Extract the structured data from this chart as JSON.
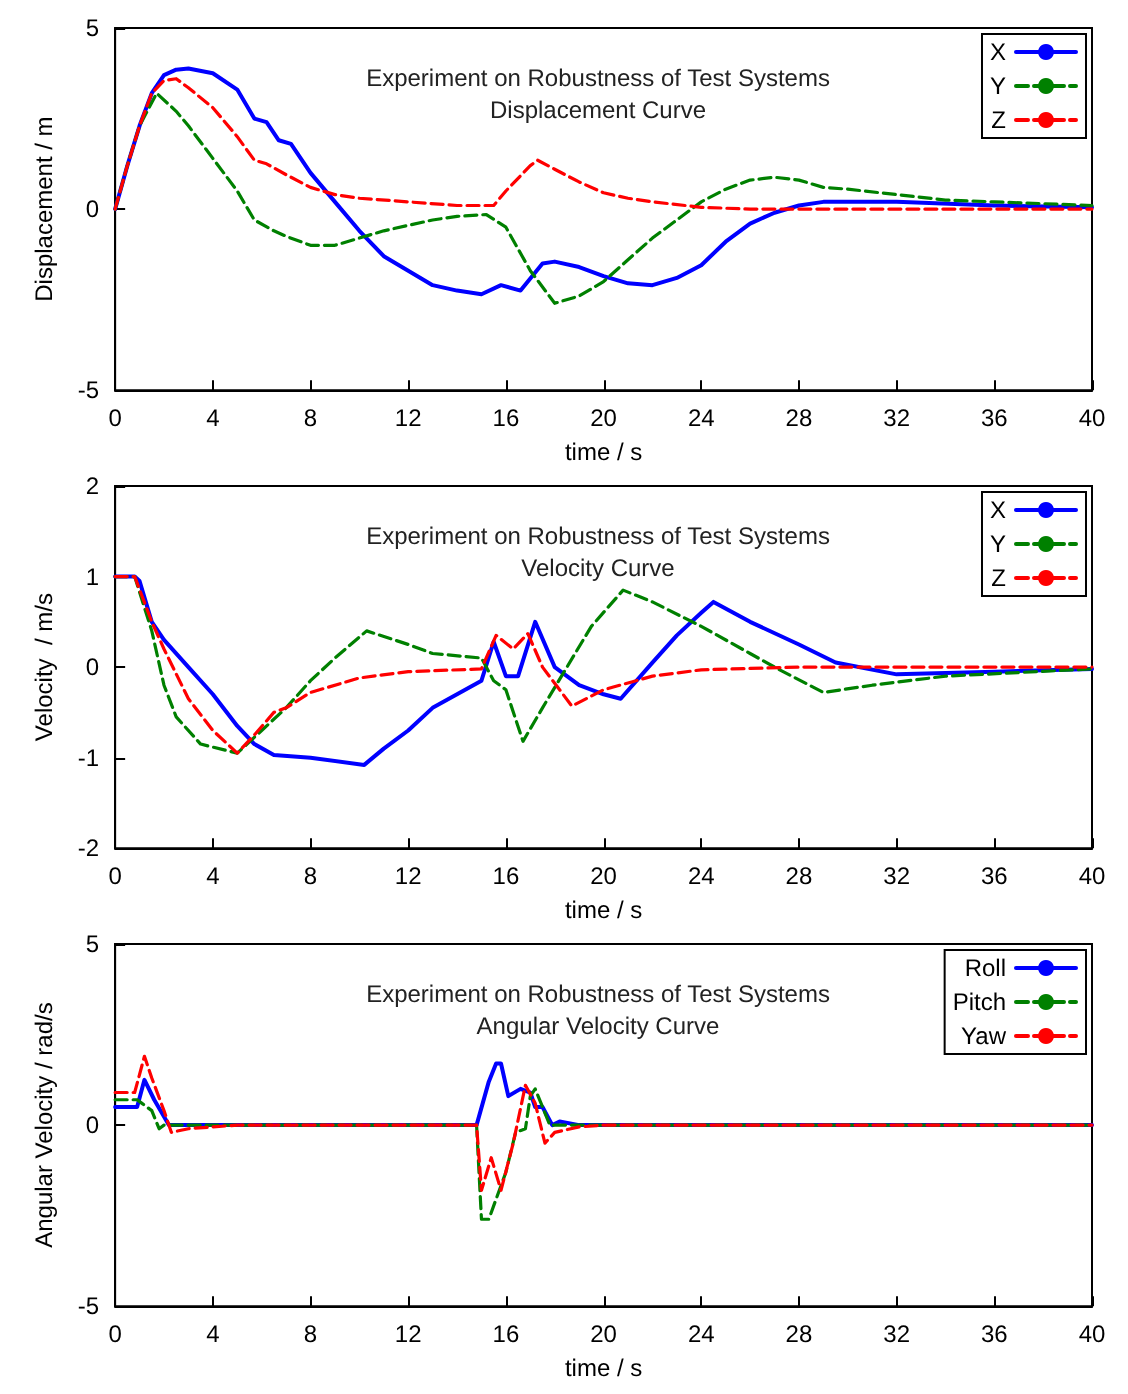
{
  "chart_data": [
    {
      "type": "line",
      "title": "Experiment on Robustness of Test Systems",
      "subtitle": "Displacement Curve",
      "xlabel": "time / s",
      "ylabel": "Displacement / m",
      "xlim": [
        0,
        40
      ],
      "xticks": [
        0,
        4,
        8,
        12,
        16,
        20,
        24,
        28,
        32,
        36,
        40
      ],
      "ylim": [
        -5,
        5
      ],
      "yticks": [
        -5,
        0,
        5
      ],
      "grid": false,
      "legend": "top right",
      "marker": "none",
      "series": [
        {
          "name": "X",
          "color": "#0000ff",
          "line_style": "solid",
          "x": [
            0,
            0.5,
            1,
            1.5,
            2,
            2.5,
            3,
            4,
            5,
            5.7,
            6.2,
            6.7,
            7.2,
            8,
            9,
            10,
            11,
            12,
            13,
            14,
            15,
            15.8,
            16.6,
            17.5,
            18,
            19,
            20,
            21,
            22,
            23,
            24,
            25,
            26,
            27,
            28,
            29,
            32,
            36,
            40
          ],
          "values": [
            0,
            1.2,
            2.3,
            3.2,
            3.7,
            3.85,
            3.88,
            3.75,
            3.3,
            2.5,
            2.4,
            1.9,
            1.8,
            1.0,
            0.2,
            -0.6,
            -1.3,
            -1.7,
            -2.1,
            -2.25,
            -2.35,
            -2.1,
            -2.25,
            -1.5,
            -1.45,
            -1.6,
            -1.85,
            -2.05,
            -2.1,
            -1.9,
            -1.55,
            -0.9,
            -0.4,
            -0.1,
            0.1,
            0.2,
            0.2,
            0.1,
            0.05
          ]
        },
        {
          "name": "Y",
          "color": "#008000",
          "line_style": "dashed",
          "x": [
            0,
            0.5,
            1,
            1.7,
            2.5,
            3,
            4,
            5,
            5.7,
            6.5,
            7,
            8,
            9,
            10,
            11,
            12,
            13,
            14,
            15.2,
            16,
            17,
            18,
            19,
            20,
            21,
            22,
            23,
            24,
            25,
            26,
            27,
            28,
            29,
            30,
            32,
            34,
            36,
            40
          ],
          "values": [
            0,
            1.2,
            2.3,
            3.2,
            2.7,
            2.3,
            1.4,
            0.5,
            -0.3,
            -0.6,
            -0.75,
            -1.0,
            -1.0,
            -0.8,
            -0.6,
            -0.45,
            -0.3,
            -0.2,
            -0.15,
            -0.5,
            -1.7,
            -2.6,
            -2.4,
            -2.0,
            -1.4,
            -0.8,
            -0.3,
            0.2,
            0.55,
            0.8,
            0.88,
            0.8,
            0.6,
            0.55,
            0.4,
            0.25,
            0.2,
            0.1
          ]
        },
        {
          "name": "Z",
          "color": "#ff0000",
          "line_style": "dashed",
          "x": [
            0,
            0.5,
            1,
            1.5,
            2,
            2.5,
            3,
            4,
            5,
            5.7,
            6.2,
            7,
            8,
            9,
            10,
            12,
            14,
            15.5,
            16,
            17,
            17.3,
            18,
            19,
            20,
            21,
            22,
            24,
            26,
            28,
            32,
            40
          ],
          "values": [
            0,
            1.2,
            2.3,
            3.2,
            3.55,
            3.6,
            3.35,
            2.8,
            2.0,
            1.35,
            1.25,
            0.95,
            0.6,
            0.4,
            0.3,
            0.2,
            0.1,
            0.1,
            0.5,
            1.2,
            1.35,
            1.1,
            0.75,
            0.45,
            0.3,
            0.2,
            0.05,
            0,
            0,
            0,
            0
          ]
        }
      ]
    },
    {
      "type": "line",
      "title": "Experiment on Robustness of Test Systems",
      "subtitle": "Velocity Curve",
      "xlabel": "time / s",
      "ylabel": "Velocity  / m/s",
      "xlim": [
        0,
        40
      ],
      "xticks": [
        0,
        4,
        8,
        12,
        16,
        20,
        24,
        28,
        32,
        36,
        40
      ],
      "ylim": [
        -2,
        2
      ],
      "yticks": [
        -2,
        -1,
        0,
        1,
        2
      ],
      "grid": false,
      "legend": "top right",
      "marker": "none",
      "series": [
        {
          "name": "X",
          "color": "#0000ff",
          "line_style": "solid",
          "x": [
            0,
            0.8,
            1,
            1.5,
            2,
            3,
            4,
            5,
            5.7,
            6.5,
            8,
            10.2,
            11,
            12,
            13,
            14,
            15,
            15.5,
            16,
            16.5,
            17.2,
            18,
            19,
            20,
            20.7,
            22,
            23,
            24,
            24.5,
            26,
            28,
            29.5,
            32,
            36,
            40
          ],
          "values": [
            1,
            1,
            0.95,
            0.5,
            0.3,
            0,
            -0.3,
            -0.65,
            -0.85,
            -0.97,
            -1.0,
            -1.08,
            -0.9,
            -0.7,
            -0.45,
            -0.3,
            -0.15,
            0.28,
            -0.1,
            -0.1,
            0.5,
            0,
            -0.2,
            -0.3,
            -0.35,
            0.05,
            0.35,
            0.6,
            0.72,
            0.5,
            0.25,
            0.05,
            -0.08,
            -0.05,
            -0.02
          ]
        },
        {
          "name": "Y",
          "color": "#008000",
          "line_style": "dashed",
          "x": [
            0,
            0.8,
            1.5,
            2,
            2.5,
            3.5,
            5,
            6,
            7,
            8,
            9,
            10.3,
            12,
            13,
            15,
            15.5,
            16,
            16.7,
            17.5,
            18.5,
            19.5,
            20.8,
            22,
            24,
            26,
            27,
            29,
            31,
            34,
            40
          ],
          "values": [
            1,
            1,
            0.4,
            -0.2,
            -0.55,
            -0.85,
            -0.95,
            -0.7,
            -0.45,
            -0.15,
            0.1,
            0.4,
            0.25,
            0.15,
            0.1,
            -0.15,
            -0.25,
            -0.82,
            -0.45,
            0,
            0.45,
            0.85,
            0.72,
            0.45,
            0.15,
            0,
            -0.28,
            -0.2,
            -0.1,
            -0.02
          ]
        },
        {
          "name": "Z",
          "color": "#ff0000",
          "line_style": "dashed",
          "x": [
            0,
            0.8,
            1.5,
            2,
            3,
            4,
            5,
            5.7,
            6.5,
            7,
            8,
            10,
            12,
            15,
            15.6,
            16.3,
            16.9,
            17.5,
            18.7,
            20,
            22,
            24,
            28,
            40
          ],
          "values": [
            1,
            1,
            0.5,
            0.2,
            -0.35,
            -0.7,
            -0.95,
            -0.75,
            -0.5,
            -0.45,
            -0.28,
            -0.12,
            -0.05,
            -0.02,
            0.35,
            0.2,
            0.37,
            0,
            -0.43,
            -0.25,
            -0.1,
            -0.03,
            0,
            0
          ]
        }
      ]
    },
    {
      "type": "line",
      "title": "Experiment on Robustness of Test Systems",
      "subtitle": "Angular Velocity Curve",
      "xlabel": "time / s",
      "ylabel": "Angular Velocity / rad/s",
      "xlim": [
        0,
        40
      ],
      "xticks": [
        0,
        4,
        8,
        12,
        16,
        20,
        24,
        28,
        32,
        36,
        40
      ],
      "ylim": [
        -5,
        5
      ],
      "yticks": [
        -5,
        0,
        5
      ],
      "grid": false,
      "legend": "top right",
      "marker": "none",
      "series": [
        {
          "name": "Roll",
          "color": "#0000ff",
          "line_style": "solid",
          "x": [
            0,
            0.9,
            1.2,
            1.6,
            2.2,
            4,
            14.8,
            15.3,
            15.6,
            15.8,
            16.1,
            16.6,
            17.0,
            17.2,
            17.5,
            17.9,
            18.2,
            19,
            40
          ],
          "values": [
            0.5,
            0.5,
            1.25,
            0.7,
            0,
            0,
            0,
            1.2,
            1.7,
            1.7,
            0.8,
            1.0,
            0.9,
            0.5,
            0.5,
            0,
            0.1,
            0,
            0
          ]
        },
        {
          "name": "Pitch",
          "color": "#008000",
          "line_style": "dashed",
          "x": [
            0,
            0.9,
            1.1,
            1.5,
            1.8,
            2,
            14.8,
            15,
            15.3,
            16,
            16.4,
            16.8,
            17.0,
            17.2,
            17.8,
            18,
            40
          ],
          "values": [
            0.7,
            0.7,
            0.6,
            0.4,
            -0.1,
            0,
            0,
            -2.6,
            -2.6,
            -1.3,
            -0.2,
            -0.1,
            0.8,
            1.0,
            0,
            0,
            0
          ]
        },
        {
          "name": "Yaw",
          "color": "#ff0000",
          "line_style": "dashed",
          "x": [
            0,
            0.8,
            1.2,
            1.5,
            2,
            2.3,
            3,
            5,
            14.8,
            15,
            15.4,
            15.8,
            16.3,
            16.8,
            17.2,
            17.6,
            18,
            19,
            20,
            40
          ],
          "values": [
            0.9,
            0.9,
            1.9,
            1.3,
            0.4,
            -0.2,
            -0.1,
            0,
            0,
            -1.8,
            -0.9,
            -1.8,
            -0.5,
            1.1,
            0.6,
            -0.5,
            -0.2,
            -0.05,
            0,
            0
          ]
        }
      ]
    }
  ]
}
